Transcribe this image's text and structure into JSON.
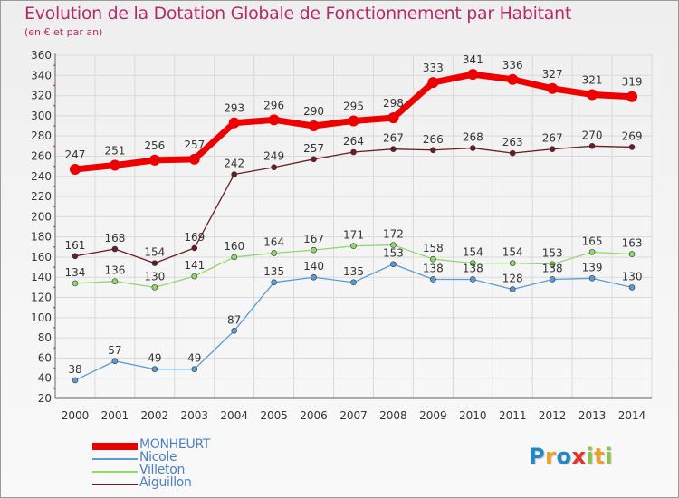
{
  "chart_data": {
    "type": "line",
    "title": "Evolution de la Dotation Globale de Fonctionnement par Habitant",
    "subtitle": "(en € et par an)",
    "x": [
      "2000",
      "2001",
      "2002",
      "2003",
      "2004",
      "2005",
      "2006",
      "2007",
      "2008",
      "2009",
      "2010",
      "2011",
      "2012",
      "2013",
      "2014"
    ],
    "ylim": [
      20,
      360
    ],
    "yticks": [
      "20",
      "40",
      "60",
      "80",
      "100",
      "120",
      "140",
      "160",
      "180",
      "200",
      "220",
      "240",
      "260",
      "280",
      "300",
      "320",
      "340",
      "360"
    ],
    "grid": true,
    "legend_position": "bottom-left",
    "series": [
      {
        "name": "MONHEURT",
        "color": "#ee0000",
        "values": [
          247,
          251,
          256,
          257,
          293,
          296,
          290,
          295,
          298,
          333,
          341,
          336,
          327,
          321,
          319
        ]
      },
      {
        "name": "Nicole",
        "color": "#5b9bd5",
        "values": [
          38,
          57,
          49,
          49,
          87,
          135,
          140,
          135,
          153,
          138,
          138,
          128,
          138,
          139,
          130
        ]
      },
      {
        "name": "Villeton",
        "color": "#8fd96a",
        "values": [
          134,
          136,
          130,
          141,
          160,
          164,
          167,
          171,
          172,
          158,
          154,
          154,
          153,
          165,
          163
        ]
      },
      {
        "name": "Aiguillon",
        "color": "#6b1c24",
        "values": [
          161,
          168,
          154,
          169,
          242,
          249,
          257,
          264,
          267,
          266,
          268,
          263,
          267,
          270,
          269
        ]
      }
    ]
  },
  "colors": {
    "title": "#b52a6a",
    "grid": "#d9d9d9",
    "axis": "#666666",
    "label": "#333333",
    "legend_label": "#4a7fc1"
  },
  "logo": {
    "letters": [
      {
        "char": "P",
        "color": "#1e88c8"
      },
      {
        "char": "r",
        "color": "#f0a020"
      },
      {
        "char": "o",
        "color": "#1e88c8"
      },
      {
        "char": "x",
        "color": "#e8302a"
      },
      {
        "char": "i",
        "color": "#8bc34a"
      },
      {
        "char": "t",
        "color": "#f0a020"
      },
      {
        "char": "i",
        "color": "#8bc34a"
      }
    ]
  }
}
